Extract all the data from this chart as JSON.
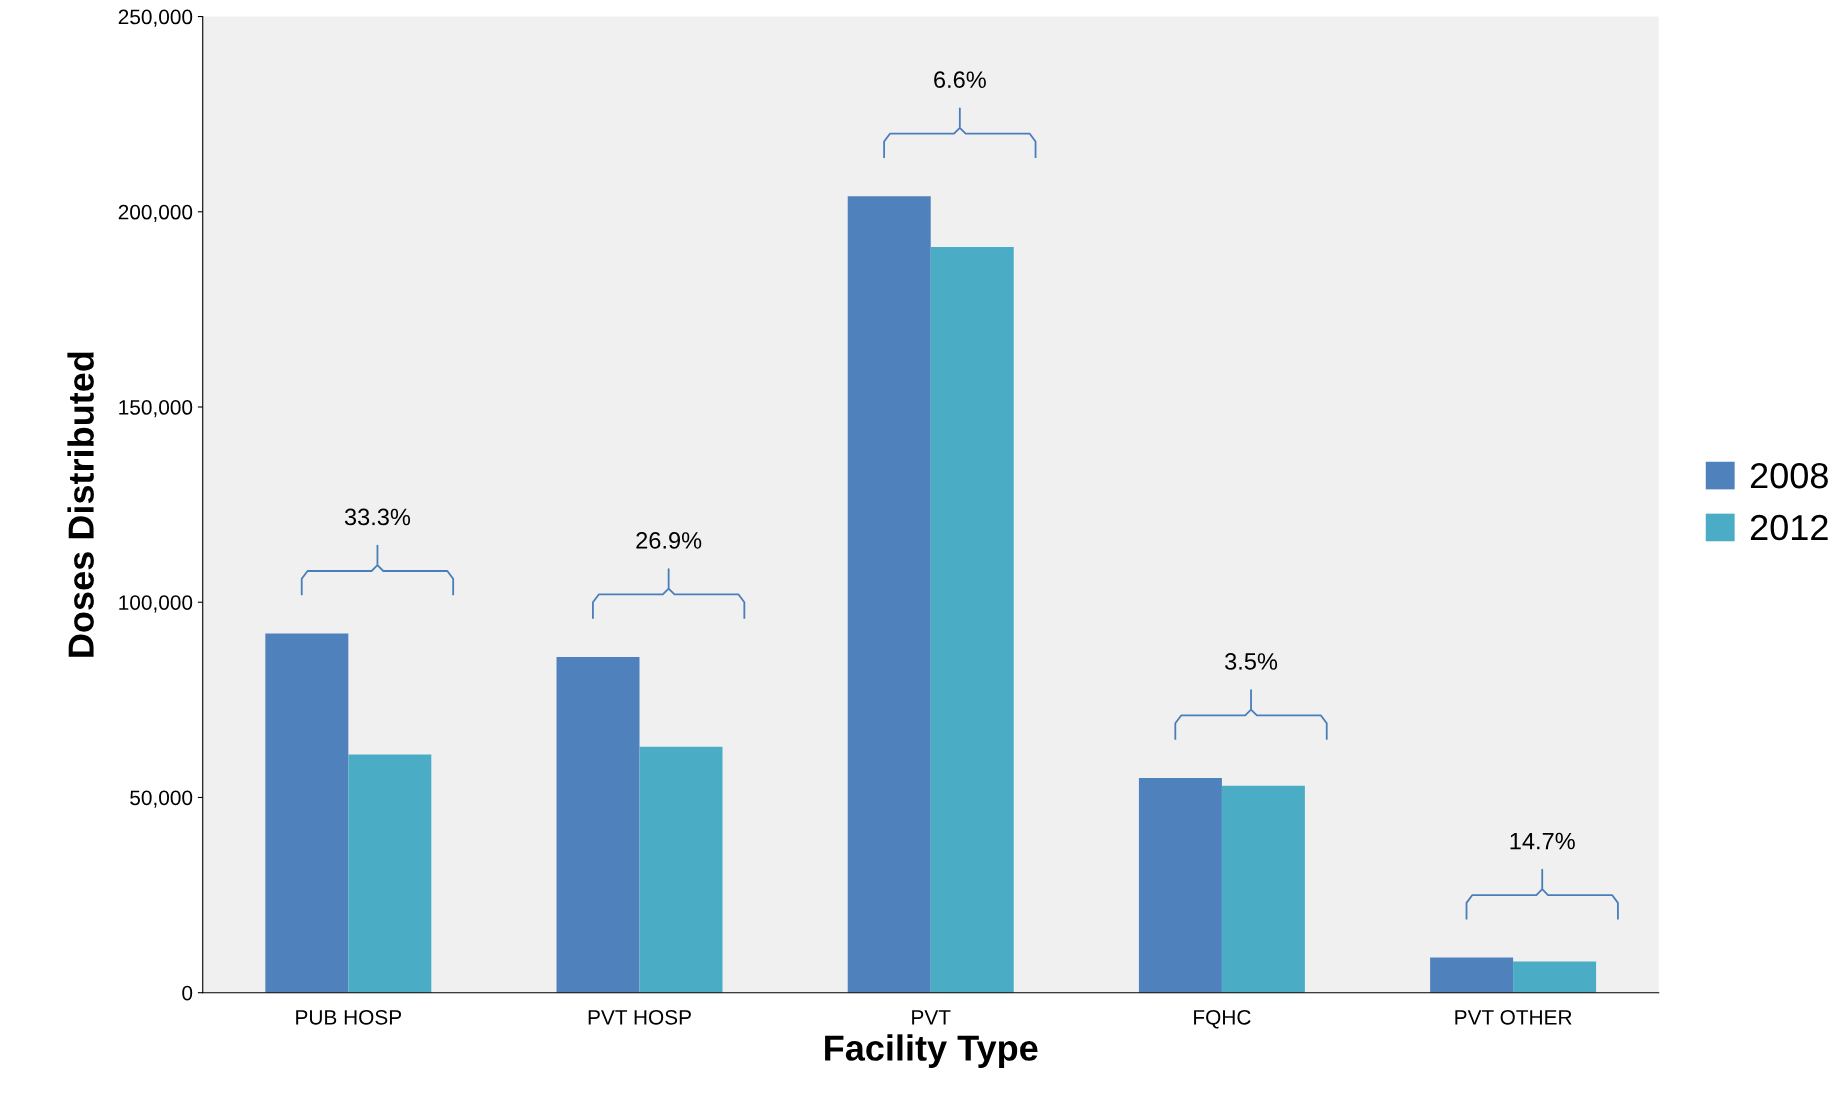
{
  "chart_data": {
    "type": "bar",
    "xlabel": "Facility Type",
    "ylabel": "Doses Distributed",
    "categories": [
      "PUB HOSP",
      "PVT HOSP",
      "PVT",
      "FQHC",
      "PVT OTHER"
    ],
    "series": [
      {
        "name": "2008",
        "color": "#4f81bd",
        "values": [
          92000,
          86000,
          204000,
          55000,
          9000
        ]
      },
      {
        "name": "2012",
        "color": "#4bacc6",
        "values": [
          61000,
          63000,
          191000,
          53000,
          8000
        ]
      }
    ],
    "ylim": [
      0,
      250000
    ],
    "yticks": [
      {
        "value": 0,
        "label": "0"
      },
      {
        "value": 50000,
        "label": "50,000"
      },
      {
        "value": 100000,
        "label": "100,000"
      },
      {
        "value": 150000,
        "label": "150,000"
      },
      {
        "value": 200000,
        "label": "200,000"
      },
      {
        "value": 250000,
        "label": "250,000"
      }
    ],
    "annotations": [
      "33.3%",
      "26.9%",
      "6.6%",
      "3.5%",
      "14.7%"
    ],
    "grid": false,
    "legend": "right"
  }
}
